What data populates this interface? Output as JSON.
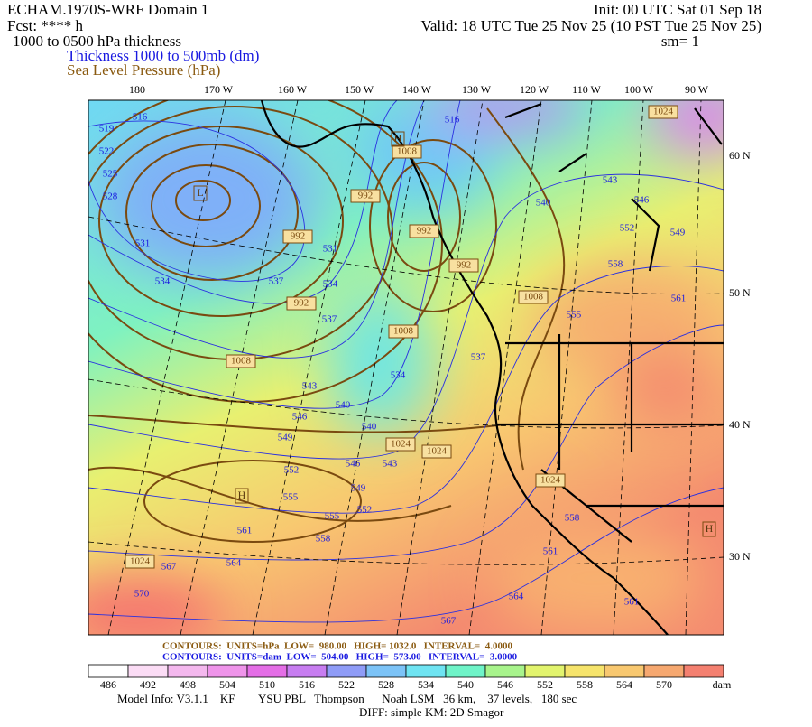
{
  "header": {
    "title": "ECHAM.1970S-WRF Domain 1",
    "forecast": "Fcst: **** h",
    "product": "1000 to 0500 hPa thickness",
    "thickness_label": "Thickness 1000 to 500mb (dm)",
    "slp_label": "Sea Level Pressure (hPa)",
    "init": "Init: 00 UTC Sat 01 Sep 18",
    "valid": "Valid: 18 UTC Tue 25 Nov 25 (10 PST Tue 25 Nov 25)",
    "smooth": "sm= 1"
  },
  "axes": {
    "longitudes": [
      "180",
      "170 W",
      "160 W",
      "150 W",
      "140 W",
      "130 W",
      "120 W",
      "110 W",
      "100 W",
      "90 W"
    ],
    "latitudes": [
      "60 N",
      "50 N",
      "40 N",
      "30 N"
    ]
  },
  "thickness_labels": [
    516,
    519,
    522,
    525,
    528,
    531,
    534,
    537,
    531,
    534,
    537,
    543,
    546,
    549,
    552,
    555,
    561,
    564,
    567,
    570,
    540,
    540,
    543,
    546,
    549,
    552,
    555,
    558,
    534,
    537,
    516,
    540,
    543,
    546,
    549,
    552,
    558,
    561,
    555,
    561,
    564,
    567,
    561,
    558
  ],
  "pressure_labels": [
    1008,
    992,
    992,
    992,
    1008,
    1008,
    1024,
    1024,
    1008,
    1024,
    1024,
    1024,
    992,
    992
  ],
  "highs_lows": [
    "L",
    "H",
    "H",
    "H"
  ],
  "footer": {
    "slp_contours": "CONTOURS:  UNITS=hPa  LOW=  980.00   HIGH= 1032.0   INTERVAL=  4.0000",
    "thickness_contours": "CONTOURS:  UNITS=dam  LOW=  504.00   HIGH=  573.00   INTERVAL=  3.0000",
    "colorbar": {
      "labels": [
        486,
        492,
        498,
        504,
        510,
        516,
        522,
        528,
        534,
        540,
        546,
        552,
        558,
        564,
        570
      ],
      "unit": "dam",
      "colors": [
        "#ffffff",
        "#fbdcf5",
        "#f4b8ee",
        "#ef94ea",
        "#e46ee6",
        "#c77df0",
        "#8f9cf7",
        "#7cc3f7",
        "#6fe4f2",
        "#6ff4c8",
        "#a8f48c",
        "#e2f46e",
        "#f6e46c",
        "#f8c870",
        "#f6a870",
        "#f48070"
      ]
    },
    "model_info": "Model Info: V3.1.1    KF        YSU PBL   Thompson      Noah LSM   36 km,    37 levels,   180 sec",
    "diff": "DIFF: simple KM: 2D Smagor"
  }
}
